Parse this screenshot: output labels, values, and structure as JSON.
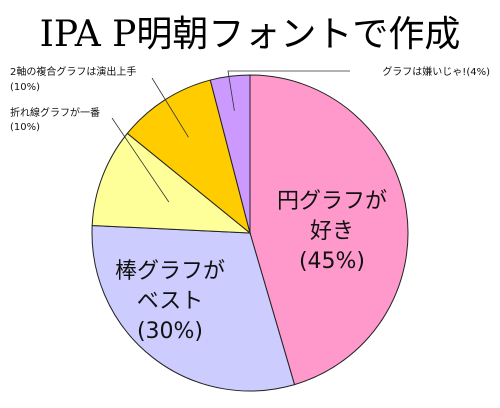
{
  "chart_data": {
    "type": "pie",
    "title": "IPA P明朝フォントで作成",
    "slices": [
      {
        "label": [
          "円グラフが",
          "好き"
        ],
        "pct_label": "(45%)",
        "value": 45,
        "color": "#ff99cc"
      },
      {
        "label": [
          "棒グラフが",
          "ベスト"
        ],
        "pct_label": "(30%)",
        "value": 30,
        "color": "#ccccff"
      },
      {
        "label": [
          "折れ線グラフが一番"
        ],
        "pct_label": "(10%)",
        "value": 10,
        "color": "#ffff99"
      },
      {
        "label": [
          "2軸の複合グラフは演出上手"
        ],
        "pct_label": "(10%)",
        "value": 10,
        "color": "#ffcc00"
      },
      {
        "label": [
          "グラフは嫌いじゃ!"
        ],
        "pct_label": "(4%)",
        "value": 4,
        "color": "#cc99ff"
      }
    ]
  }
}
